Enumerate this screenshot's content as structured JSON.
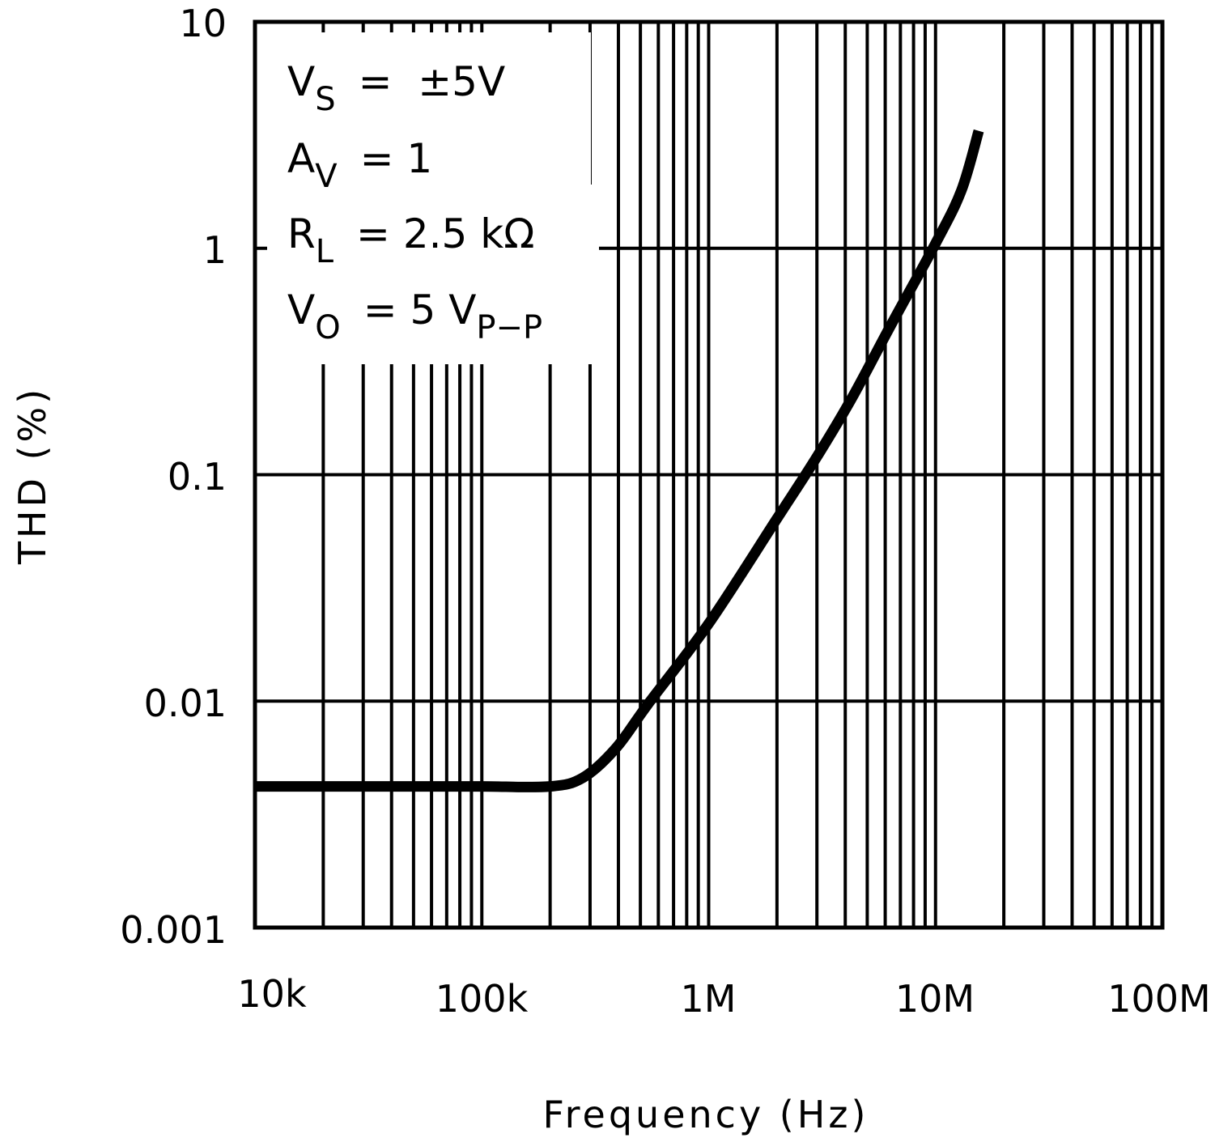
{
  "chart_data": {
    "type": "line",
    "title": "",
    "xlabel": "Frequency (Hz)",
    "ylabel": "THD (%)",
    "x_scale": "log",
    "y_scale": "log",
    "xlim": [
      10000,
      100000000
    ],
    "ylim": [
      0.001,
      10
    ],
    "grid": true,
    "x_ticks": [
      {
        "value": 10000,
        "label": "10k"
      },
      {
        "value": 100000,
        "label": "100k"
      },
      {
        "value": 1000000,
        "label": "1M"
      },
      {
        "value": 10000000,
        "label": "10M"
      },
      {
        "value": 100000000,
        "label": "100M"
      }
    ],
    "y_ticks": [
      {
        "value": 10,
        "label": "10"
      },
      {
        "value": 1,
        "label": "1"
      },
      {
        "value": 0.1,
        "label": "0.1"
      },
      {
        "value": 0.01,
        "label": "0.01"
      },
      {
        "value": 0.001,
        "label": "0.001"
      }
    ],
    "annotations": [
      {
        "main": "V",
        "sub": "S",
        "rest": " = ±5V"
      },
      {
        "main": "A",
        "sub": "V",
        "rest": " = 1"
      },
      {
        "main": "R",
        "sub": "L",
        "rest": " = 2.5 kΩ"
      },
      {
        "main": "V",
        "sub": "O",
        "rest": " = 5 V",
        "sub2": "P-P"
      }
    ],
    "series": [
      {
        "name": "THD",
        "color": "#000000",
        "x": [
          10000,
          50000,
          100000,
          200000,
          280000,
          390000,
          540000,
          1000000,
          2000000,
          3000000,
          4300000,
          6300000,
          10000000,
          13000000,
          15500000
        ],
        "values": [
          0.0042,
          0.0042,
          0.0042,
          0.0042,
          0.0046,
          0.0062,
          0.0097,
          0.022,
          0.064,
          0.12,
          0.22,
          0.45,
          1.05,
          1.8,
          3.3
        ]
      }
    ]
  },
  "labels": {
    "xlabel": "Frequency (Hz)",
    "ylabel": "THD (%)",
    "x_ticks": [
      "10k",
      "100k",
      "1M",
      "10M",
      "100M"
    ],
    "y_ticks": [
      "10",
      "1",
      "0.1",
      "0.01",
      "0.001"
    ],
    "annot": {
      "vs_main": "V",
      "vs_sub": "S",
      "vs_rest": "=  ±5V",
      "av_main": "A",
      "av_sub": "V",
      "av_rest": "=  1",
      "rl_main": "R",
      "rl_sub": "L",
      "rl_rest": "=  2.5 kΩ",
      "vo_main": "V",
      "vo_sub": "O",
      "vo_rest": "=  5 V",
      "vo_sub2": "P−P"
    }
  }
}
